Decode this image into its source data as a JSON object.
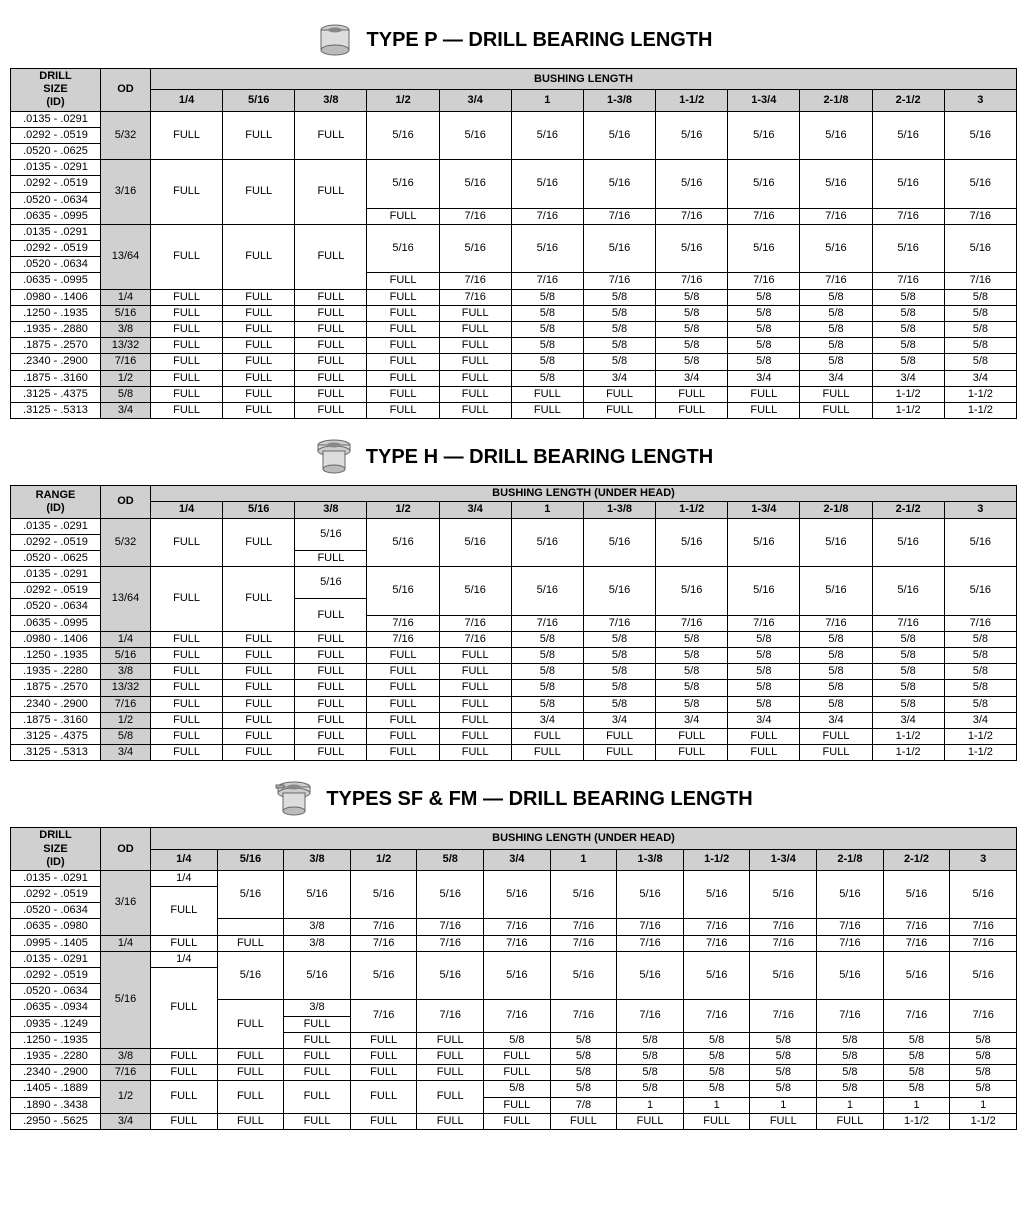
{
  "typeP": {
    "title": "TYPE P — DRILL BEARING LENGTH",
    "drillHeader1": "DRILL",
    "drillHeader2": "SIZE",
    "drillHeader3": "(ID)",
    "odHeader": "OD",
    "bushingHeader": "BUSHING LENGTH",
    "cols": [
      "1/4",
      "5/16",
      "3/8",
      "1/2",
      "3/4",
      "1",
      "1-3/8",
      "1-1/2",
      "1-3/4",
      "2-1/8",
      "2-1/2",
      "3"
    ],
    "groups": [
      {
        "od": "5/32",
        "drill": [
          ".0135 - .0291",
          ".0292 - .0519",
          ".0520 - .0625"
        ],
        "blocks": [
          {
            "rows": 3,
            "cells": [
              "FULL",
              "FULL",
              "FULL",
              "5/16",
              "5/16",
              "5/16",
              "5/16",
              "5/16",
              "5/16",
              "5/16",
              "5/16",
              "5/16"
            ]
          }
        ]
      },
      {
        "od": "3/16",
        "drill": [
          ".0135 - .0291",
          ".0292 - .0519",
          ".0520 - .0634",
          ".0635 - .0995"
        ],
        "prefix": [
          {
            "rows": 4,
            "cells": [
              "FULL",
              "FULL",
              "FULL"
            ]
          }
        ],
        "blocks": [
          {
            "rows": 3,
            "cells": [
              "5/16",
              "5/16",
              "5/16",
              "5/16",
              "5/16",
              "5/16",
              "5/16",
              "5/16",
              "5/16"
            ]
          },
          {
            "rows": 1,
            "cells": [
              "FULL",
              "7/16",
              "7/16",
              "7/16",
              "7/16",
              "7/16",
              "7/16",
              "7/16",
              "7/16"
            ]
          }
        ]
      },
      {
        "od": "13/64",
        "drill": [
          ".0135 - .0291",
          ".0292 - .0519",
          ".0520 - .0634",
          ".0635 - .0995"
        ],
        "prefix": [
          {
            "rows": 4,
            "cells": [
              "FULL",
              "FULL",
              "FULL"
            ]
          }
        ],
        "blocks": [
          {
            "rows": 3,
            "cells": [
              "5/16",
              "5/16",
              "5/16",
              "5/16",
              "5/16",
              "5/16",
              "5/16",
              "5/16",
              "5/16"
            ]
          },
          {
            "rows": 1,
            "cells": [
              "FULL",
              "7/16",
              "7/16",
              "7/16",
              "7/16",
              "7/16",
              "7/16",
              "7/16",
              "7/16"
            ]
          }
        ]
      },
      {
        "od": "1/4",
        "drill": [
          ".0980 - .1406"
        ],
        "blocks": [
          {
            "rows": 1,
            "cells": [
              "FULL",
              "FULL",
              "FULL",
              "FULL",
              "7/16",
              "5/8",
              "5/8",
              "5/8",
              "5/8",
              "5/8",
              "5/8",
              "5/8"
            ]
          }
        ]
      },
      {
        "od": "5/16",
        "drill": [
          ".1250 - .1935"
        ],
        "blocks": [
          {
            "rows": 1,
            "cells": [
              "FULL",
              "FULL",
              "FULL",
              "FULL",
              "FULL",
              "5/8",
              "5/8",
              "5/8",
              "5/8",
              "5/8",
              "5/8",
              "5/8"
            ]
          }
        ]
      },
      {
        "od": "3/8",
        "drill": [
          ".1935 - .2880"
        ],
        "blocks": [
          {
            "rows": 1,
            "cells": [
              "FULL",
              "FULL",
              "FULL",
              "FULL",
              "FULL",
              "5/8",
              "5/8",
              "5/8",
              "5/8",
              "5/8",
              "5/8",
              "5/8"
            ]
          }
        ]
      },
      {
        "od": "13/32",
        "drill": [
          ".1875 - .2570"
        ],
        "blocks": [
          {
            "rows": 1,
            "cells": [
              "FULL",
              "FULL",
              "FULL",
              "FULL",
              "FULL",
              "5/8",
              "5/8",
              "5/8",
              "5/8",
              "5/8",
              "5/8",
              "5/8"
            ]
          }
        ]
      },
      {
        "od": "7/16",
        "drill": [
          ".2340 - .2900"
        ],
        "blocks": [
          {
            "rows": 1,
            "cells": [
              "FULL",
              "FULL",
              "FULL",
              "FULL",
              "FULL",
              "5/8",
              "5/8",
              "5/8",
              "5/8",
              "5/8",
              "5/8",
              "5/8"
            ]
          }
        ]
      },
      {
        "od": "1/2",
        "drill": [
          ".1875 - .3160"
        ],
        "blocks": [
          {
            "rows": 1,
            "cells": [
              "FULL",
              "FULL",
              "FULL",
              "FULL",
              "FULL",
              "5/8",
              "3/4",
              "3/4",
              "3/4",
              "3/4",
              "3/4",
              "3/4"
            ]
          }
        ]
      },
      {
        "od": "5/8",
        "drill": [
          ".3125 - .4375"
        ],
        "blocks": [
          {
            "rows": 1,
            "cells": [
              "FULL",
              "FULL",
              "FULL",
              "FULL",
              "FULL",
              "FULL",
              "FULL",
              "FULL",
              "FULL",
              "FULL",
              "1-1/2",
              "1-1/2"
            ]
          }
        ]
      },
      {
        "od": "3/4",
        "drill": [
          ".3125 - .5313"
        ],
        "blocks": [
          {
            "rows": 1,
            "cells": [
              "FULL",
              "FULL",
              "FULL",
              "FULL",
              "FULL",
              "FULL",
              "FULL",
              "FULL",
              "FULL",
              "FULL",
              "1-1/2",
              "1-1/2"
            ]
          }
        ]
      }
    ]
  },
  "typeH": {
    "title": "TYPE H — DRILL BEARING LENGTH",
    "drillHeader1": "RANGE",
    "drillHeader2": "(ID)",
    "odHeader": "OD",
    "bushingHeader": "BUSHING LENGTH (UNDER HEAD)",
    "cols": [
      "1/4",
      "5/16",
      "3/8",
      "1/2",
      "3/4",
      "1",
      "1-3/8",
      "1-1/2",
      "1-3/4",
      "2-1/8",
      "2-1/2",
      "3"
    ],
    "groups": [
      {
        "od": "5/32",
        "drill": [
          ".0135 - .0291",
          ".0292 - .0519",
          ".0520 - .0625"
        ],
        "prefix": [
          {
            "rows": 3,
            "cells": [
              "FULL",
              "FULL"
            ]
          }
        ],
        "col3": [
          {
            "rows": 2,
            "val": "5/16"
          },
          {
            "rows": 1,
            "val": "FULL"
          }
        ],
        "blocks": [
          {
            "rows": 3,
            "cells": [
              "5/16",
              "5/16",
              "5/16",
              "5/16",
              "5/16",
              "5/16",
              "5/16",
              "5/16",
              "5/16"
            ]
          }
        ]
      },
      {
        "od": "13/64",
        "drill": [
          ".0135 - .0291",
          ".0292 - .0519",
          ".0520 - .0634",
          ".0635 - .0995"
        ],
        "prefix": [
          {
            "rows": 4,
            "cells": [
              "FULL",
              "FULL"
            ]
          }
        ],
        "col3": [
          {
            "rows": 2,
            "val": "5/16"
          },
          {
            "rows": 2,
            "val": "FULL"
          }
        ],
        "blocks": [
          {
            "rows": 3,
            "cells": [
              "5/16",
              "5/16",
              "5/16",
              "5/16",
              "5/16",
              "5/16",
              "5/16",
              "5/16",
              "5/16"
            ]
          },
          {
            "rows": 1,
            "cells": [
              "7/16",
              "7/16",
              "7/16",
              "7/16",
              "7/16",
              "7/16",
              "7/16",
              "7/16",
              "7/16"
            ]
          }
        ]
      },
      {
        "od": "1/4",
        "drill": [
          ".0980 - .1406"
        ],
        "blocks": [
          {
            "rows": 1,
            "cells": [
              "FULL",
              "FULL",
              "FULL",
              "7/16",
              "7/16",
              "5/8",
              "5/8",
              "5/8",
              "5/8",
              "5/8",
              "5/8",
              "5/8"
            ]
          }
        ]
      },
      {
        "od": "5/16",
        "drill": [
          ".1250 - .1935"
        ],
        "blocks": [
          {
            "rows": 1,
            "cells": [
              "FULL",
              "FULL",
              "FULL",
              "FULL",
              "FULL",
              "5/8",
              "5/8",
              "5/8",
              "5/8",
              "5/8",
              "5/8",
              "5/8"
            ]
          }
        ]
      },
      {
        "od": "3/8",
        "drill": [
          ".1935 - .2280"
        ],
        "blocks": [
          {
            "rows": 1,
            "cells": [
              "FULL",
              "FULL",
              "FULL",
              "FULL",
              "FULL",
              "5/8",
              "5/8",
              "5/8",
              "5/8",
              "5/8",
              "5/8",
              "5/8"
            ]
          }
        ]
      },
      {
        "od": "13/32",
        "drill": [
          ".1875 - .2570"
        ],
        "blocks": [
          {
            "rows": 1,
            "cells": [
              "FULL",
              "FULL",
              "FULL",
              "FULL",
              "FULL",
              "5/8",
              "5/8",
              "5/8",
              "5/8",
              "5/8",
              "5/8",
              "5/8"
            ]
          }
        ]
      },
      {
        "od": "7/16",
        "drill": [
          ".2340 - .2900"
        ],
        "blocks": [
          {
            "rows": 1,
            "cells": [
              "FULL",
              "FULL",
              "FULL",
              "FULL",
              "FULL",
              "5/8",
              "5/8",
              "5/8",
              "5/8",
              "5/8",
              "5/8",
              "5/8"
            ]
          }
        ]
      },
      {
        "od": "1/2",
        "drill": [
          ".1875 - .3160"
        ],
        "blocks": [
          {
            "rows": 1,
            "cells": [
              "FULL",
              "FULL",
              "FULL",
              "FULL",
              "FULL",
              "3/4",
              "3/4",
              "3/4",
              "3/4",
              "3/4",
              "3/4",
              "3/4"
            ]
          }
        ]
      },
      {
        "od": "5/8",
        "drill": [
          ".3125 - .4375"
        ],
        "blocks": [
          {
            "rows": 1,
            "cells": [
              "FULL",
              "FULL",
              "FULL",
              "FULL",
              "FULL",
              "FULL",
              "FULL",
              "FULL",
              "FULL",
              "FULL",
              "1-1/2",
              "1-1/2"
            ]
          }
        ]
      },
      {
        "od": "3/4",
        "drill": [
          ".3125 - .5313"
        ],
        "blocks": [
          {
            "rows": 1,
            "cells": [
              "FULL",
              "FULL",
              "FULL",
              "FULL",
              "FULL",
              "FULL",
              "FULL",
              "FULL",
              "FULL",
              "FULL",
              "1-1/2",
              "1-1/2"
            ]
          }
        ]
      }
    ]
  },
  "typeSF": {
    "title": "TYPES SF & FM — DRILL BEARING LENGTH",
    "drillHeader1": "DRILL",
    "drillHeader2": "SIZE",
    "drillHeader3": "(ID)",
    "odHeader": "OD",
    "bushingHeader": "BUSHING LENGTH (UNDER HEAD)",
    "cols": [
      "1/4",
      "5/16",
      "3/8",
      "1/2",
      "5/8",
      "3/4",
      "1",
      "1-3/8",
      "1-1/2",
      "1-3/4",
      "2-1/8",
      "2-1/2",
      "3"
    ],
    "groups": [
      {
        "od": "3/16",
        "drill": [
          ".0135 - .0291",
          ".0292 - .0519",
          ".0520 - .0634",
          ".0635 - .0980"
        ],
        "col1": [
          {
            "rows": 1,
            "val": "1/4"
          },
          {
            "rows": 3,
            "val": "FULL"
          }
        ],
        "col2": [
          {
            "rows": 3,
            "val": "5/16"
          },
          {
            "rows": 1,
            "val": ""
          }
        ],
        "col3": [
          {
            "rows": 3,
            "val": "5/16"
          },
          {
            "rows": 1,
            "val": "3/8"
          }
        ],
        "blocks": [
          {
            "rows": 3,
            "cells": [
              "5/16",
              "5/16",
              "5/16",
              "5/16",
              "5/16",
              "5/16",
              "5/16",
              "5/16",
              "5/16",
              "5/16"
            ]
          },
          {
            "rows": 1,
            "cells": [
              "7/16",
              "7/16",
              "7/16",
              "7/16",
              "7/16",
              "7/16",
              "7/16",
              "7/16",
              "7/16",
              "7/16"
            ]
          }
        ]
      },
      {
        "od": "1/4",
        "drill": [
          ".0995 - .1405"
        ],
        "blocks": [
          {
            "rows": 1,
            "cells": [
              "FULL",
              "FULL",
              "3/8",
              "7/16",
              "7/16",
              "7/16",
              "7/16",
              "7/16",
              "7/16",
              "7/16",
              "7/16",
              "7/16",
              "7/16"
            ]
          }
        ]
      },
      {
        "od": "5/16",
        "drill": [
          ".0135 - .0291",
          ".0292 - .0519",
          ".0520 - .0634",
          ".0635 - .0934",
          ".0935 - .1249",
          ".1250 - .1935"
        ],
        "col1": [
          {
            "rows": 1,
            "val": "1/4"
          },
          {
            "rows": 5,
            "val": "FULL"
          }
        ],
        "col2": [
          {
            "rows": 3,
            "val": "5/16"
          },
          {
            "rows": 3,
            "val": "FULL"
          }
        ],
        "col3": [
          {
            "rows": 3,
            "val": "5/16"
          },
          {
            "rows": 1,
            "val": "3/8"
          },
          {
            "rows": 1,
            "val": "FULL"
          },
          {
            "rows": 1,
            "val": "FULL"
          }
        ],
        "blocks": [
          {
            "rows": 3,
            "cells": [
              "5/16",
              "5/16",
              "5/16",
              "5/16",
              "5/16",
              "5/16",
              "5/16",
              "5/16",
              "5/16",
              "5/16"
            ]
          },
          {
            "rows": 2,
            "cells": [
              "7/16",
              "7/16",
              "7/16",
              "7/16",
              "7/16",
              "7/16",
              "7/16",
              "7/16",
              "7/16",
              "7/16"
            ]
          },
          {
            "rows": 1,
            "cells": [
              "FULL",
              "FULL",
              "5/8",
              "5/8",
              "5/8",
              "5/8",
              "5/8",
              "5/8",
              "5/8",
              "5/8"
            ]
          }
        ]
      },
      {
        "od": "3/8",
        "drill": [
          ".1935 - .2280"
        ],
        "blocks": [
          {
            "rows": 1,
            "cells": [
              "FULL",
              "FULL",
              "FULL",
              "FULL",
              "FULL",
              "FULL",
              "5/8",
              "5/8",
              "5/8",
              "5/8",
              "5/8",
              "5/8",
              "5/8"
            ]
          }
        ]
      },
      {
        "od": "7/16",
        "drill": [
          ".2340 - .2900"
        ],
        "blocks": [
          {
            "rows": 1,
            "cells": [
              "FULL",
              "FULL",
              "FULL",
              "FULL",
              "FULL",
              "FULL",
              "5/8",
              "5/8",
              "5/8",
              "5/8",
              "5/8",
              "5/8",
              "5/8"
            ]
          }
        ]
      },
      {
        "od": "1/2",
        "drill": [
          ".1405 - .1889",
          ".1890 - .3438"
        ],
        "col1": [
          {
            "rows": 2,
            "val": "FULL"
          }
        ],
        "col2": [
          {
            "rows": 2,
            "val": "FULL"
          }
        ],
        "col3": [
          {
            "rows": 2,
            "val": "FULL"
          }
        ],
        "col4": [
          {
            "rows": 2,
            "val": "FULL"
          }
        ],
        "col5": [
          {
            "rows": 2,
            "val": "FULL"
          }
        ],
        "blocks": [
          {
            "rows": 1,
            "cells": [
              "5/8",
              "5/8",
              "5/8",
              "5/8",
              "5/8",
              "5/8",
              "5/8",
              "5/8"
            ]
          },
          {
            "rows": 1,
            "cells": [
              "FULL",
              "7/8",
              "1",
              "1",
              "1",
              "1",
              "1",
              "1"
            ]
          }
        ]
      },
      {
        "od": "3/4",
        "drill": [
          ".2950 - .5625"
        ],
        "blocks": [
          {
            "rows": 1,
            "cells": [
              "FULL",
              "FULL",
              "FULL",
              "FULL",
              "FULL",
              "FULL",
              "FULL",
              "FULL",
              "FULL",
              "FULL",
              "FULL",
              "1-1/2",
              "1-1/2"
            ]
          }
        ]
      }
    ]
  }
}
